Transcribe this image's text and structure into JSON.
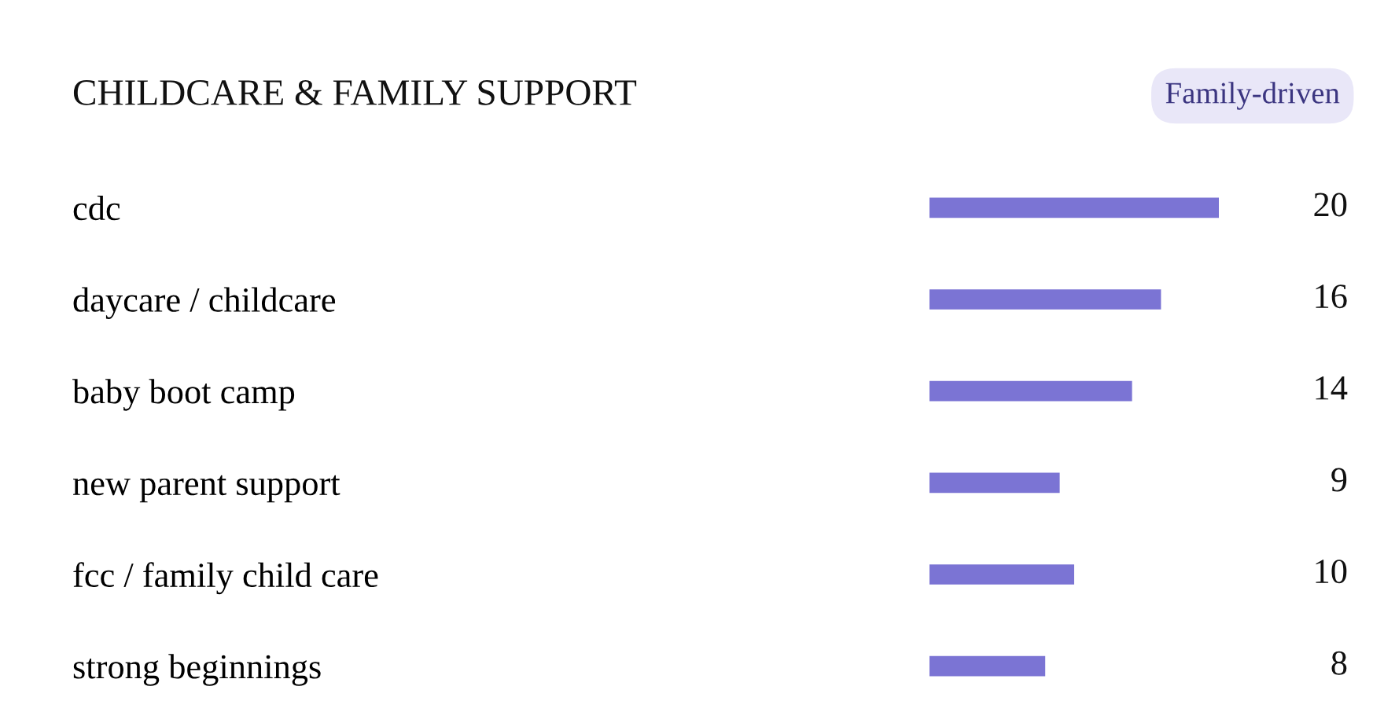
{
  "chart_data": {
    "type": "bar",
    "orientation": "horizontal",
    "title": "CHILDCARE & FAMILY SUPPORT",
    "annotations": [
      "Family-driven"
    ],
    "categories": [
      "cdc",
      "daycare / childcare",
      "baby boot camp",
      "new parent support",
      "fcc / family child care",
      "strong beginnings"
    ],
    "values": [
      20,
      16,
      14,
      9,
      10,
      8
    ],
    "color": "#7b74d4",
    "data_labels": true,
    "tick_labels": "y",
    "grid": false,
    "legend": false
  }
}
